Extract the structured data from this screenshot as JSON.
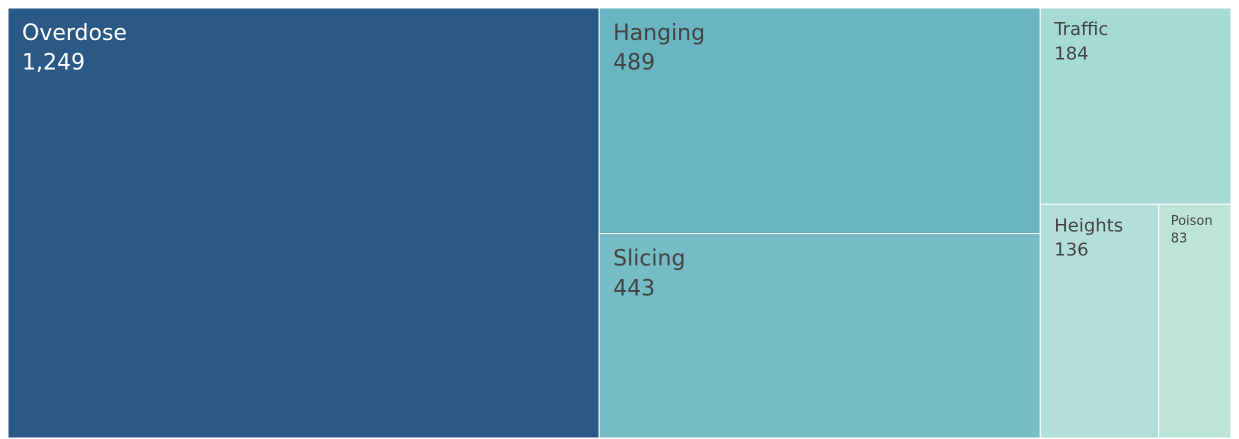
{
  "chart_data": {
    "type": "treemap",
    "categories": [
      "Overdose",
      "Hanging",
      "Slicing",
      "Traffic",
      "Heights",
      "Poison"
    ],
    "values": [
      1249,
      489,
      443,
      184,
      136,
      83
    ],
    "value_labels": [
      "1,249",
      "489",
      "443",
      "184",
      "136",
      "83"
    ],
    "colors": [
      "#2b5985",
      "#6ab5c2",
      "#75bcc6",
      "#a6dad5",
      "#b2dfd9",
      "#bde4d9"
    ]
  }
}
